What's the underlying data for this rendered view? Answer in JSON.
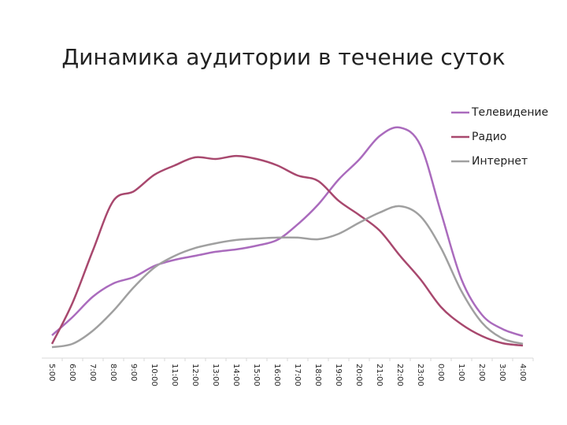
{
  "chart_data": {
    "type": "line",
    "title": "Динамика аудитории в течение суток",
    "categories": [
      "5:00",
      "6:00",
      "7:00",
      "8:00",
      "9:00",
      "10:00",
      "11:00",
      "12:00",
      "13:00",
      "14:00",
      "15:00",
      "16:00",
      "17:00",
      "18:00",
      "19:00",
      "20:00",
      "21:00",
      "22:00",
      "23:00",
      "0:00",
      "1:00",
      "2:00",
      "3:00",
      "4:00"
    ],
    "ylim": [
      0,
      100
    ],
    "legend": "upper right",
    "series": [
      {
        "name": "Телевидение",
        "color": "#aa6bbd",
        "values": [
          6.3,
          14,
          22.7,
          28.3,
          31,
          35.7,
          38.3,
          40,
          41.7,
          42.7,
          44.3,
          46.7,
          53.3,
          61.7,
          72.3,
          80.7,
          90.7,
          94.3,
          86.7,
          58.3,
          30,
          15,
          9,
          6
        ]
      },
      {
        "name": "Радио",
        "color": "#a8486e",
        "values": [
          2.7,
          20,
          42.3,
          63.3,
          67.3,
          74.3,
          78.3,
          81.7,
          81,
          82.3,
          81,
          78.3,
          74,
          71.7,
          63.3,
          57.3,
          50.7,
          40,
          30,
          18.3,
          11,
          6,
          3,
          2
        ]
      },
      {
        "name": "Интернет",
        "color": "#a0a0a0",
        "values": [
          1.3,
          2.7,
          8.3,
          16.7,
          26.7,
          35,
          40,
          43.3,
          45.3,
          46.7,
          47.3,
          47.7,
          47.7,
          47,
          49.3,
          54,
          58.3,
          61,
          56.7,
          43.3,
          25,
          11.7,
          5,
          2.7
        ]
      }
    ]
  }
}
